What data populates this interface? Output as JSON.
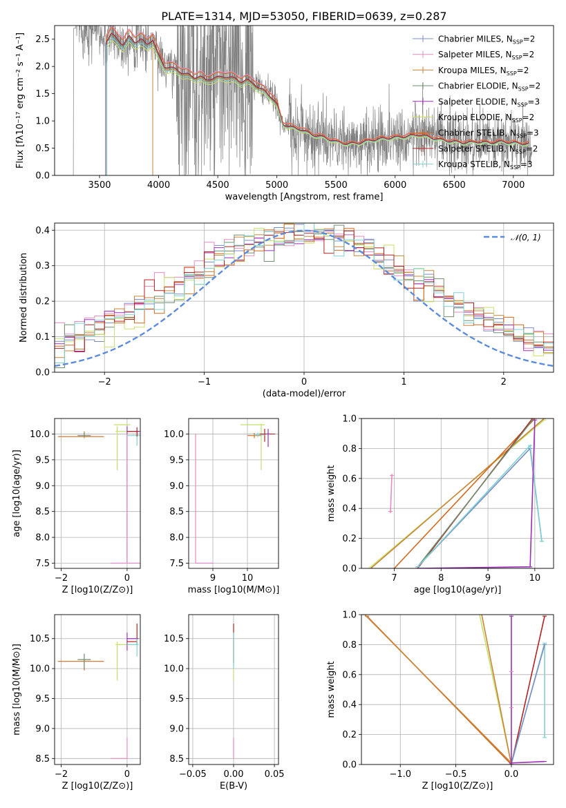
{
  "figure": {
    "title": "PLATE=1314, MJD=53050, FIBERID=0639, z=0.287"
  },
  "colors": {
    "data": "#808080",
    "ChabrierMILES": "#7b8cc5",
    "SalpeterMILES": "#e78ac3",
    "KroupaMILES": "#c8853a",
    "ChabrierELODIE": "#6f8f6f",
    "SalpeterELODIE": "#9b30b5",
    "KroupaELODIE": "#c5e06a",
    "ChabrierSTELIB": "#d2691e",
    "SalpeterSTELIB": "#b22222",
    "KroupaSTELIB": "#7fd1d1",
    "gauss": "#5b8bdc",
    "grid": "#b0b0b0"
  },
  "chart_data": [
    {
      "id": "spectrum",
      "type": "line",
      "title": "PLATE=1314, MJD=53050, FIBERID=0639, z=0.287",
      "xlabel": "wavelength [Angstrom, rest frame]",
      "ylabel": "Flux [fλ10⁻¹⁷ erg cm⁻² s⁻¹ A⁻¹]",
      "xlim": [
        3120,
        7340
      ],
      "ylim": [
        0,
        2.75
      ],
      "xticks": [
        3500,
        4000,
        4500,
        5000,
        5500,
        6000,
        6500,
        7000
      ],
      "yticks": [
        0.0,
        0.5,
        1.0,
        1.5,
        2.0,
        2.5
      ],
      "grid": false,
      "legend_position": "top-right",
      "legend": [
        "Chabrier MILES, N_SSP=2",
        "Salpeter MILES, N_SSP=2",
        "Kroupa MILES, N_SSP=2",
        "Chabrier ELODIE, N_SSP=2",
        "Salpeter ELODIE, N_SSP=3",
        "Kroupa ELODIE, N_SSP=2",
        "Chabrier STELIB, N_SSP=3",
        "Salpeter STELIB, N_SSP=2",
        "Kroupa STELIB, N_SSP=3"
      ],
      "model_continuum": {
        "x": [
          3500,
          3550,
          3600,
          3650,
          3700,
          3750,
          3800,
          3850,
          3900,
          3950,
          4000,
          4050,
          4100,
          4150,
          4200,
          4250,
          4300,
          4350,
          4400,
          4450,
          4500,
          4550,
          4600,
          4650,
          4700,
          4750,
          4800,
          4850,
          4900,
          4950,
          5000,
          5050,
          5100,
          5200,
          5300,
          5400,
          5500,
          5600,
          5700,
          5800,
          5900,
          6000,
          6100,
          6200,
          6300,
          6400,
          6500,
          6600,
          6700,
          6800,
          6900,
          7000,
          7100
        ],
        "values": [
          2.55,
          2.45,
          2.6,
          2.5,
          2.4,
          2.55,
          2.45,
          2.5,
          2.4,
          2.5,
          2.2,
          2.0,
          1.98,
          1.95,
          1.88,
          1.85,
          1.8,
          1.82,
          1.75,
          1.78,
          1.8,
          1.82,
          1.8,
          1.78,
          1.72,
          1.75,
          1.7,
          1.6,
          1.55,
          1.45,
          1.3,
          0.95,
          0.9,
          0.85,
          0.75,
          0.7,
          0.62,
          0.58,
          0.6,
          0.65,
          0.68,
          0.7,
          0.72,
          0.75,
          0.7,
          0.65,
          0.62,
          0.6,
          0.62,
          0.6,
          0.62,
          0.6,
          0.58
        ]
      }
    },
    {
      "id": "residuals",
      "type": "line",
      "xlabel": "(data-model)/error",
      "ylabel": "Normed distribution",
      "xlim": [
        -2.5,
        2.5
      ],
      "ylim": [
        0,
        0.42
      ],
      "xticks": [
        -2,
        -1,
        0,
        1,
        2
      ],
      "yticks": [
        0.0,
        0.1,
        0.2,
        0.3,
        0.4
      ],
      "grid": true,
      "legend_position": "top-right",
      "legend": [
        "𝒩(0, 1)"
      ],
      "gaussian": {
        "mean": 0,
        "sigma": 1
      }
    },
    {
      "id": "age_vs_Z",
      "type": "scatter",
      "xlabel": "Z [log10(Z/Z⊙)]",
      "ylabel": "age  [log10(age/yr)]",
      "xlim": [
        -2.2,
        0.4
      ],
      "ylim": [
        7.4,
        10.3
      ],
      "xticks": [
        -2,
        0
      ],
      "yticks": [
        7.5,
        8.0,
        8.5,
        9.0,
        9.5,
        10.0
      ],
      "grid": true
    },
    {
      "id": "age_vs_mass",
      "type": "scatter",
      "xlabel": "mass [log10(M/M⊙)]",
      "xlim": [
        8.3,
        10.9
      ],
      "ylim": [
        7.4,
        10.3
      ],
      "xticks": [
        9,
        10
      ],
      "yticks": [
        7.5,
        8.0,
        8.5,
        9.0,
        9.5,
        10.0
      ],
      "grid": true
    },
    {
      "id": "weight_vs_age",
      "type": "line",
      "xlabel": "age  [log10(age/yr)]",
      "ylabel": "mass weight",
      "xlim": [
        6.3,
        10.4
      ],
      "ylim": [
        0,
        1.0
      ],
      "xticks": [
        7,
        8,
        9,
        10
      ],
      "yticks": [
        0.0,
        0.2,
        0.4,
        0.6,
        0.8,
        1.0
      ],
      "grid": true
    },
    {
      "id": "mass_vs_Z",
      "type": "scatter",
      "xlabel": "Z [log10(Z/Z⊙)]",
      "ylabel": "mass [log10(M/M⊙)]",
      "xlim": [
        -2.2,
        0.4
      ],
      "ylim": [
        8.4,
        10.9
      ],
      "xticks": [
        -2,
        0
      ],
      "yticks": [
        8.5,
        9.0,
        9.5,
        10.0,
        10.5
      ],
      "grid": true
    },
    {
      "id": "mass_vs_ebv",
      "type": "scatter",
      "xlabel": "E(B-V)",
      "xlim": [
        -0.055,
        0.055
      ],
      "ylim": [
        8.4,
        10.9
      ],
      "xticks": [
        -0.05,
        0.0,
        0.05
      ],
      "yticks": [
        8.5,
        9.0,
        9.5,
        10.0,
        10.5
      ],
      "grid": true
    },
    {
      "id": "weight_vs_Z",
      "type": "line",
      "xlabel": "Z [log10(Z/Z⊙)]",
      "ylabel": "mass weight",
      "xlim": [
        -1.35,
        0.38
      ],
      "ylim": [
        0,
        1.0
      ],
      "xticks": [
        -1.0,
        -0.5,
        0.0
      ],
      "yticks": [
        0.0,
        0.2,
        0.4,
        0.6,
        0.8,
        1.0
      ],
      "grid": true
    }
  ]
}
